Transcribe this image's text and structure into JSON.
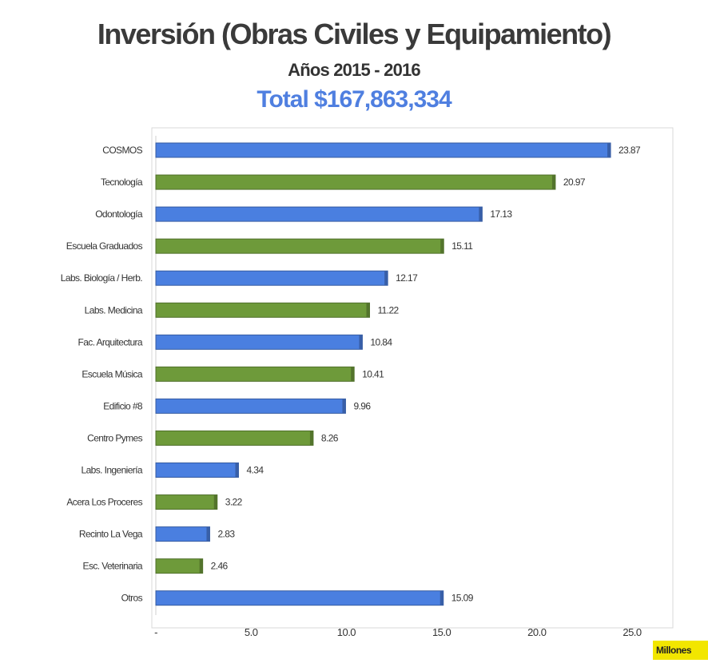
{
  "header": {
    "title": "Inversión (Obras Civiles y Equipamiento)",
    "subtitle": "Años 2015 - 2016",
    "total": "Total $167,863,334"
  },
  "units_label": "Millones",
  "colors": {
    "blue": "#4a7fe0",
    "green": "#6e9a3a",
    "total_text": "#4f7fe0",
    "units_badge": "#f2e600"
  },
  "chart_data": {
    "type": "bar",
    "orientation": "horizontal",
    "title": "Inversión (Obras Civiles y Equipamiento)",
    "subtitle": "Años 2015 - 2016",
    "xlabel": "Millones",
    "ylabel": "",
    "xlim": [
      0,
      25
    ],
    "x_ticks": [
      0,
      5,
      10,
      15,
      20,
      25
    ],
    "x_tick_labels": [
      "-",
      "5.0",
      "10.0",
      "15.0",
      "20.0",
      "25.0"
    ],
    "grid": false,
    "legend": "none",
    "categories": [
      "COSMOS",
      "Tecnología",
      "Odontología",
      "Escuela Graduados",
      "Labs. Biología / Herb.",
      "Labs. Medicina",
      "Fac. Arquitectura",
      "Escuela Música",
      "Edificio #8",
      "Centro Pymes",
      "Labs. Ingeniería",
      "Acera Los Proceres",
      "Recinto La Vega",
      "Esc. Veterinaria",
      "Otros"
    ],
    "values": [
      23.87,
      20.97,
      17.13,
      15.11,
      12.17,
      11.22,
      10.84,
      10.41,
      9.96,
      8.26,
      4.34,
      3.22,
      2.83,
      2.46,
      15.09
    ],
    "value_labels": [
      "23.87",
      "20.97",
      "17.13",
      "15.11",
      "12.17",
      "11.22",
      "10.84",
      "10.41",
      "9.96",
      "8.26",
      "4.34",
      "3.22",
      "2.83",
      "2.46",
      "15.09"
    ],
    "bar_colors": [
      "blue",
      "green",
      "blue",
      "green",
      "blue",
      "green",
      "blue",
      "green",
      "blue",
      "green",
      "blue",
      "green",
      "blue",
      "green",
      "blue"
    ]
  }
}
